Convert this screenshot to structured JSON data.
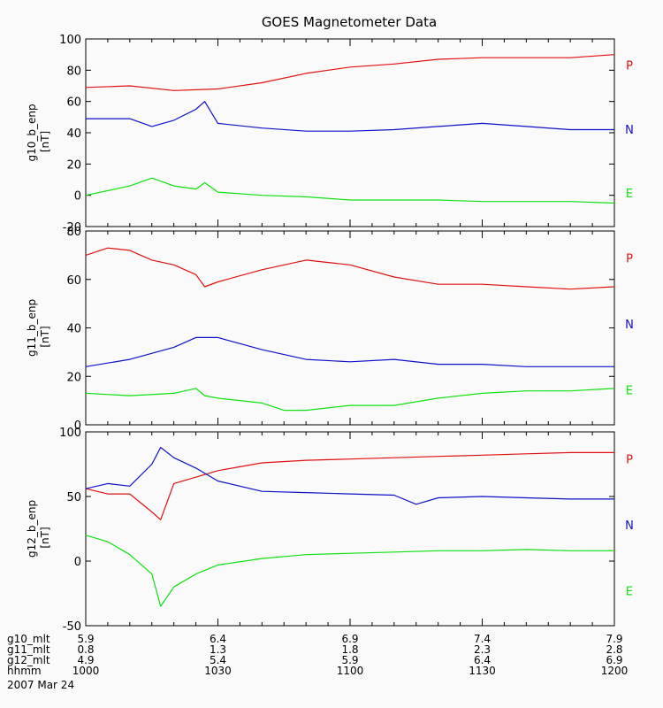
{
  "title": "GOES Magnetometer Data",
  "colors": {
    "P": "#e01010",
    "N": "#1010c8",
    "E": "#10e010",
    "axis": "#000000",
    "background": "#fafafa"
  },
  "chart_data": [
    {
      "type": "line",
      "ylabel": "g10_b_enp",
      "yunit": "[nT]",
      "ylim": [
        -20,
        100
      ],
      "yticks": [
        -20,
        0,
        20,
        40,
        60,
        80,
        100
      ],
      "xlim": [
        "1000",
        "1200"
      ],
      "legend": [
        "P",
        "N",
        "E"
      ],
      "series": [
        {
          "name": "P",
          "x": [
            0,
            10,
            20,
            30,
            40,
            50,
            60,
            70,
            80,
            90,
            100,
            110,
            120
          ],
          "values": [
            69,
            70,
            67,
            68,
            72,
            78,
            82,
            84,
            87,
            88,
            88,
            88,
            90
          ]
        },
        {
          "name": "N",
          "x": [
            0,
            10,
            15,
            20,
            25,
            27,
            30,
            40,
            50,
            60,
            70,
            80,
            90,
            100,
            110,
            120
          ],
          "values": [
            49,
            49,
            44,
            48,
            55,
            60,
            46,
            43,
            41,
            41,
            42,
            44,
            46,
            44,
            42,
            42
          ]
        },
        {
          "name": "E",
          "x": [
            0,
            10,
            15,
            20,
            25,
            27,
            30,
            40,
            50,
            60,
            70,
            80,
            90,
            100,
            110,
            120
          ],
          "values": [
            0,
            6,
            11,
            6,
            4,
            8,
            2,
            0,
            -1,
            -3,
            -3,
            -3,
            -4,
            -4,
            -4,
            -5
          ]
        }
      ]
    },
    {
      "type": "line",
      "ylabel": "g11_b_enp",
      "yunit": "[nT]",
      "ylim": [
        0,
        80
      ],
      "yticks": [
        0,
        20,
        40,
        60,
        80
      ],
      "xlim": [
        "1000",
        "1200"
      ],
      "legend": [
        "P",
        "N",
        "E"
      ],
      "series": [
        {
          "name": "P",
          "x": [
            0,
            5,
            10,
            15,
            20,
            25,
            27,
            30,
            40,
            50,
            60,
            70,
            80,
            90,
            100,
            110,
            120
          ],
          "values": [
            70,
            73,
            72,
            68,
            66,
            62,
            57,
            59,
            64,
            68,
            66,
            61,
            58,
            58,
            57,
            56,
            57
          ]
        },
        {
          "name": "N",
          "x": [
            0,
            10,
            20,
            25,
            30,
            40,
            50,
            60,
            70,
            80,
            90,
            100,
            110,
            120
          ],
          "values": [
            24,
            27,
            32,
            36,
            36,
            31,
            27,
            26,
            27,
            25,
            25,
            24,
            24,
            24
          ]
        },
        {
          "name": "E",
          "x": [
            0,
            10,
            20,
            25,
            27,
            30,
            40,
            45,
            50,
            60,
            70,
            80,
            90,
            100,
            110,
            120
          ],
          "values": [
            13,
            12,
            13,
            15,
            12,
            11,
            9,
            6,
            6,
            8,
            8,
            11,
            13,
            14,
            14,
            15
          ]
        }
      ]
    },
    {
      "type": "line",
      "ylabel": "g12_b_enp",
      "yunit": "[nT]",
      "ylim": [
        -50,
        100
      ],
      "yticks": [
        -50,
        0,
        50,
        100
      ],
      "xlim": [
        "1000",
        "1200"
      ],
      "legend": [
        "P",
        "N",
        "E"
      ],
      "series": [
        {
          "name": "P",
          "x": [
            0,
            5,
            10,
            15,
            17,
            20,
            30,
            40,
            50,
            60,
            70,
            80,
            90,
            100,
            110,
            120
          ],
          "values": [
            56,
            52,
            52,
            38,
            32,
            60,
            70,
            76,
            78,
            79,
            80,
            81,
            82,
            83,
            84,
            84
          ]
        },
        {
          "name": "N",
          "x": [
            0,
            5,
            10,
            15,
            17,
            20,
            25,
            30,
            40,
            50,
            60,
            70,
            75,
            80,
            90,
            100,
            110,
            120
          ],
          "values": [
            56,
            60,
            58,
            75,
            88,
            80,
            72,
            62,
            54,
            53,
            52,
            51,
            44,
            49,
            50,
            49,
            48,
            48
          ]
        },
        {
          "name": "E",
          "x": [
            0,
            5,
            10,
            15,
            17,
            20,
            25,
            30,
            40,
            50,
            60,
            70,
            80,
            90,
            100,
            110,
            120
          ],
          "values": [
            20,
            15,
            5,
            -10,
            -35,
            -20,
            -10,
            -3,
            2,
            5,
            6,
            7,
            8,
            8,
            9,
            8,
            8
          ]
        }
      ]
    }
  ],
  "x_axis_rows": [
    {
      "label": "g10_mlt",
      "values": [
        "5.9",
        "6.4",
        "6.9",
        "7.4",
        "7.9"
      ]
    },
    {
      "label": "g11_mlt",
      "values": [
        "0.8",
        "1.3",
        "1.8",
        "2.3",
        "2.8"
      ]
    },
    {
      "label": "g12_mlt",
      "values": [
        "4.9",
        "5.4",
        "5.9",
        "6.4",
        "6.9"
      ]
    },
    {
      "label": "hhmm",
      "values": [
        "1000",
        "1030",
        "1100",
        "1130",
        "1200"
      ]
    }
  ],
  "date": "2007 Mar 24"
}
